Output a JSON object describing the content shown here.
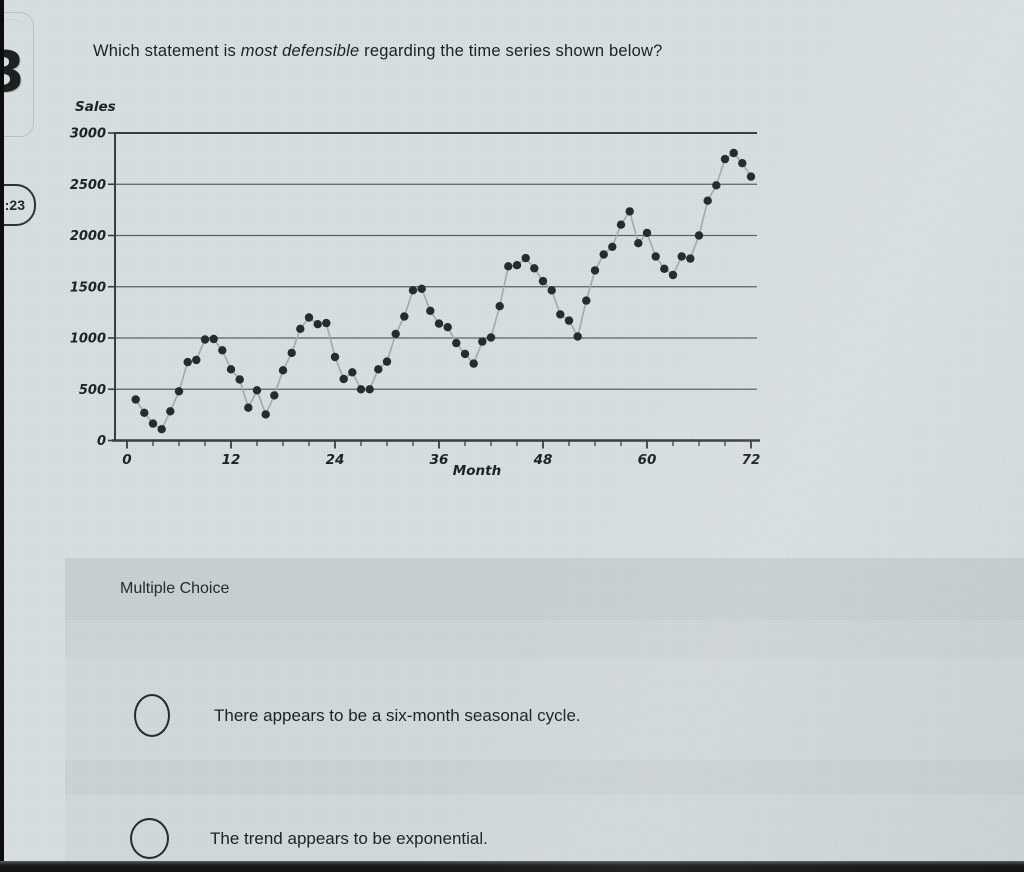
{
  "sidebar": {
    "partial_badge_glyph": "3",
    "timer_label": ":23"
  },
  "question": {
    "prefix": "Which statement is ",
    "emphasis": "most defensible",
    "suffix": " regarding the time series shown below?"
  },
  "chart_data": {
    "type": "scatter",
    "series_name": "Sales",
    "ylabel": "Sales",
    "xlabel": "Month",
    "ylim": [
      0,
      3000
    ],
    "ytick_step": 500,
    "xlim": [
      0,
      72
    ],
    "xtick_labels": [
      "0",
      "12",
      "24",
      "36",
      "48",
      "60",
      "72"
    ],
    "xtick_step": 12,
    "minor_xtick_step": 3,
    "grid": "horizontal",
    "legend": "none",
    "first_month": 1,
    "values": [
      400,
      270,
      165,
      110,
      285,
      480,
      765,
      785,
      985,
      990,
      880,
      695,
      595,
      320,
      490,
      255,
      440,
      685,
      855,
      1090,
      1200,
      1135,
      1145,
      815,
      600,
      665,
      500,
      500,
      695,
      770,
      1040,
      1210,
      1465,
      1480,
      1265,
      1140,
      1105,
      950,
      845,
      750,
      965,
      1005,
      1310,
      1700,
      1710,
      1780,
      1680,
      1555,
      1465,
      1230,
      1170,
      1015,
      1365,
      1660,
      1815,
      1890,
      2105,
      2235,
      1925,
      2025,
      1795,
      1675,
      1615,
      1795,
      1775,
      2000,
      2340,
      2490,
      2745,
      2805,
      2705,
      2575
    ]
  },
  "multiple_choice": {
    "section_label": "Multiple Choice",
    "options": [
      {
        "label": "There appears to be a six-month seasonal cycle."
      },
      {
        "label": "The trend appears to be exponential."
      }
    ]
  },
  "colors": {
    "page_bg": "#d8dfe0",
    "panel_bg": "#d2d9da",
    "panel_header_bg": "#c8d0d3",
    "dot": "#282b30",
    "line": "#a4aeb0",
    "axis": "#3a3d41",
    "grid": "#5c6165",
    "text": "#1f2324",
    "bottom_strip": "#171717"
  }
}
